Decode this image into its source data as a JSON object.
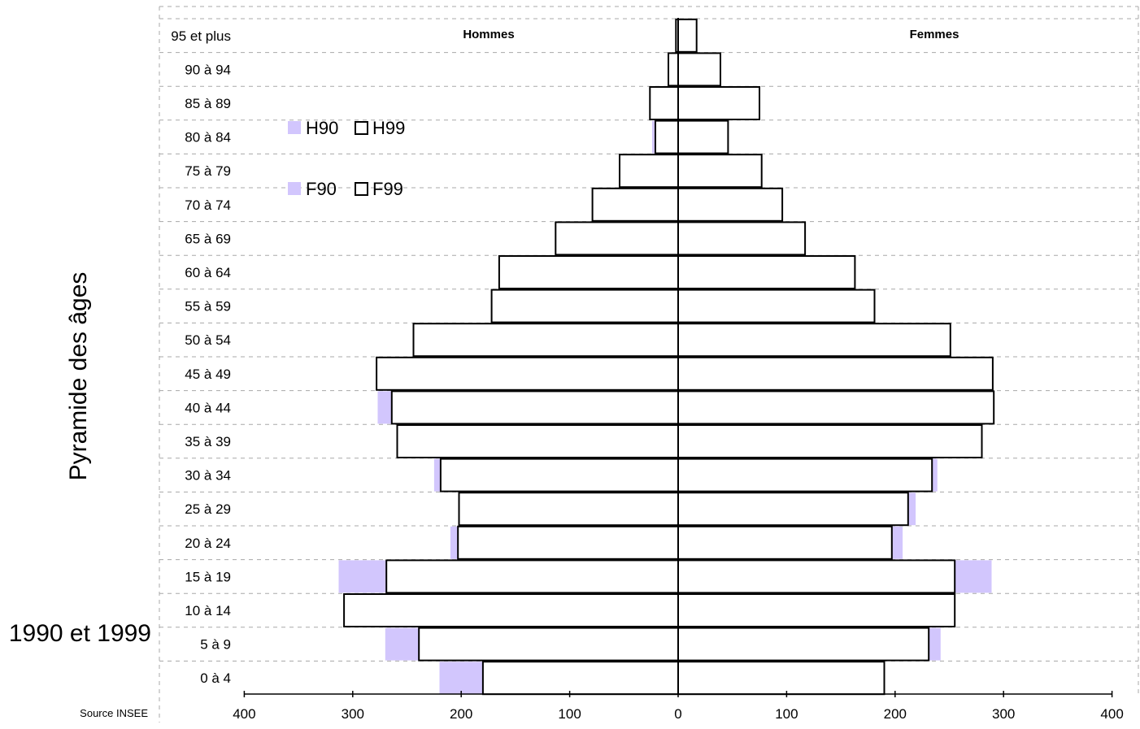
{
  "chart_data": {
    "type": "bar",
    "subtype": "population-pyramid",
    "orientation": "horizontal",
    "title_vertical": "Pyramide des âges",
    "title_bottom": "1990 et 1999",
    "source": "Source INSEE",
    "side_labels": {
      "left": "Hommes",
      "right": "Femmes"
    },
    "categories": [
      "0 à 4",
      "5 à 9",
      "10 à 14",
      "15 à 19",
      "20 à 24",
      "25 à 29",
      "30 à 34",
      "35 à 39",
      "40 à 44",
      "45 à 49",
      "50 à 54",
      "55 à 59",
      "60 à 64",
      "65 à 69",
      "70 à 74",
      "75 à 79",
      "80 à 84",
      "85 à 89",
      "90 à 94",
      "95 et plus"
    ],
    "x_tick_labels": [
      "400",
      "300",
      "200",
      "100",
      "0",
      "100",
      "200",
      "300",
      "400"
    ],
    "x_tick_values": [
      -400,
      -300,
      -200,
      -100,
      0,
      100,
      200,
      300,
      400
    ],
    "xlim": [
      -400,
      400
    ],
    "series": [
      {
        "name": "H90",
        "side": "left",
        "style": "filled",
        "values": [
          220,
          270,
          235,
          313,
          210,
          185,
          225,
          255,
          277,
          178,
          179,
          141,
          87,
          63,
          37,
          32,
          24,
          5,
          6,
          2
        ]
      },
      {
        "name": "H99",
        "side": "left",
        "style": "outline",
        "values": [
          180,
          239,
          308,
          269,
          203,
          202,
          219,
          259,
          264,
          278,
          244,
          172,
          165,
          113,
          79,
          54,
          21,
          26,
          9,
          2
        ]
      },
      {
        "name": "F90",
        "side": "right",
        "style": "filled",
        "values": [
          190,
          242,
          241,
          289,
          207,
          219,
          239,
          249,
          278,
          189,
          162,
          126,
          80,
          58,
          37,
          54,
          43,
          34,
          25,
          11
        ]
      },
      {
        "name": "F99",
        "side": "right",
        "style": "outline",
        "values": [
          190,
          231,
          255,
          255,
          197,
          212,
          234,
          280,
          291,
          290,
          251,
          181,
          163,
          117,
          96,
          77,
          46,
          75,
          39,
          17
        ]
      }
    ],
    "legend": [
      {
        "name": "H90",
        "style": "filled"
      },
      {
        "name": "H99",
        "style": "outline"
      },
      {
        "name": "F90",
        "style": "filled"
      },
      {
        "name": "F99",
        "style": "outline"
      }
    ],
    "colors": {
      "filled": "#d2c6fd",
      "outline_fill": "#ffffff",
      "stroke": "#000000",
      "grid": "#a8a8a8"
    },
    "grid": true,
    "legend_placement": "top-left"
  }
}
